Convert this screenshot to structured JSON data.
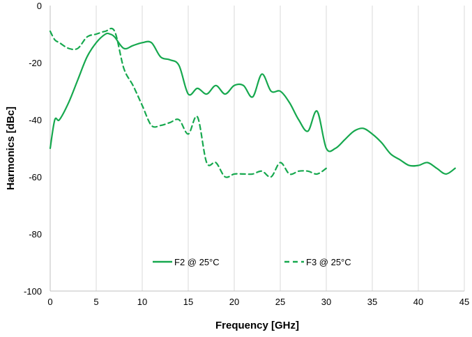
{
  "chart_data": {
    "type": "line",
    "xlabel": "Frequency [GHz]",
    "ylabel": "Harmonics [dBc]",
    "xlim": [
      0,
      45
    ],
    "ylim": [
      -100,
      0
    ],
    "xticks": [
      "0",
      "5",
      "10",
      "15",
      "20",
      "25",
      "30",
      "35",
      "40",
      "45"
    ],
    "yticks": [
      "0",
      "-20",
      "-40",
      "-60",
      "-80",
      "-100"
    ],
    "grid": "vertical",
    "legend": "inside-bottom",
    "colors": {
      "series": "#16a84e",
      "grid": "#d9d9d9",
      "axis": "#bfbfbf"
    },
    "series": [
      {
        "name": "F2 @ 25°C",
        "style": "solid",
        "x": [
          0,
          0.5,
          1,
          2,
          3,
          4,
          5,
          6,
          6.5,
          7,
          8,
          9,
          10,
          11,
          12,
          13,
          14,
          15,
          16,
          17,
          18,
          19,
          20,
          21,
          22,
          23,
          24,
          25,
          26,
          27,
          28,
          29,
          30,
          31,
          32,
          33,
          34,
          35,
          36,
          37,
          38,
          39,
          40,
          41,
          42,
          43,
          44
        ],
        "values": [
          -50,
          -40,
          -40,
          -34,
          -26,
          -18,
          -13,
          -10,
          -10,
          -11,
          -15,
          -14,
          -13,
          -13,
          -18,
          -19,
          -21,
          -31,
          -29,
          -31,
          -28,
          -31,
          -28,
          -28,
          -32,
          -24,
          -30,
          -30,
          -34,
          -40,
          -44,
          -37,
          -50,
          -50,
          -47,
          -44,
          -43,
          -45,
          -48,
          -52,
          -54,
          -56,
          -56,
          -55,
          -57,
          -59,
          -57
        ]
      },
      {
        "name": "F3 @ 25°C",
        "style": "dashed",
        "x": [
          0,
          0.5,
          1,
          2,
          3,
          4,
          5,
          6,
          7,
          8,
          9,
          10,
          11,
          12,
          13,
          14,
          15,
          16,
          17,
          18,
          19,
          20,
          21,
          22,
          23,
          24,
          25,
          26,
          27,
          28,
          29,
          30
        ],
        "values": [
          -9,
          -12,
          -13,
          -15,
          -15,
          -11,
          -10,
          -9,
          -9,
          -22,
          -28,
          -35,
          -42,
          -42,
          -41,
          -40,
          -45,
          -39,
          -55,
          -55,
          -60,
          -59,
          -59,
          -59,
          -58,
          -60,
          -55,
          -59,
          -58,
          -58,
          -59,
          -57
        ]
      }
    ]
  }
}
